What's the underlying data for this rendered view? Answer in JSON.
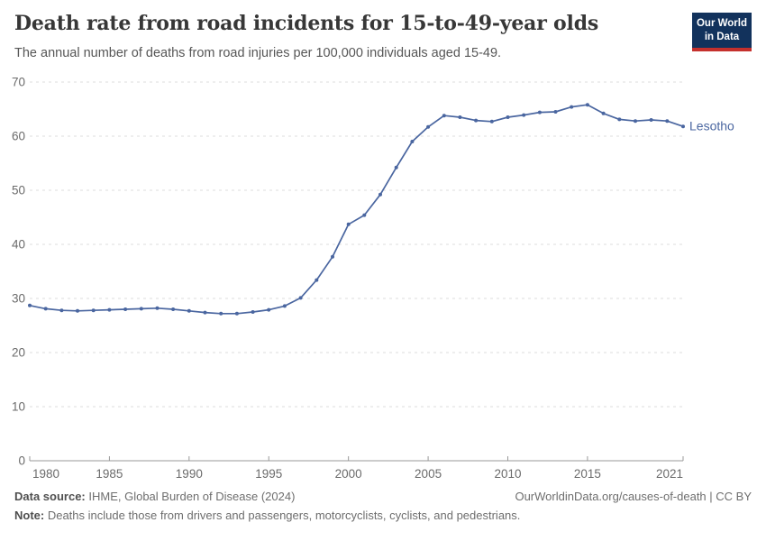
{
  "header": {
    "title": "Death rate from road incidents for 15-to-49-year olds",
    "subtitle": "The annual number of deaths from road injuries per 100,000 individuals aged 15-49."
  },
  "logo": {
    "line1": "Our World",
    "line2": "in Data",
    "bg_color": "#12325c",
    "accent_color": "#c5302d"
  },
  "chart_data": {
    "type": "line",
    "title": "Death rate from road incidents for 15-to-49-year olds",
    "subtitle": "The annual number of deaths from road injuries per 100,000 individuals aged 15-49.",
    "xlabel": "",
    "ylabel": "",
    "xlim": [
      1980,
      2021
    ],
    "ylim": [
      0,
      70
    ],
    "xticks": [
      1980,
      1985,
      1990,
      1995,
      2000,
      2005,
      2010,
      2015,
      2021
    ],
    "yticks": [
      0,
      10,
      20,
      30,
      40,
      50,
      60,
      70
    ],
    "grid": "horizontal-dashed",
    "legend_position": "end-of-line",
    "axis_color": "#999999",
    "grid_color": "#dedede",
    "tick_label_color": "#6b6b6b",
    "series": [
      {
        "name": "Lesotho",
        "color": "#4a66a0",
        "x": [
          1980,
          1981,
          1982,
          1983,
          1984,
          1985,
          1986,
          1987,
          1988,
          1989,
          1990,
          1991,
          1992,
          1993,
          1994,
          1995,
          1996,
          1997,
          1998,
          1999,
          2000,
          2001,
          2002,
          2003,
          2004,
          2005,
          2006,
          2007,
          2008,
          2009,
          2010,
          2011,
          2012,
          2013,
          2014,
          2015,
          2016,
          2017,
          2018,
          2019,
          2020,
          2021
        ],
        "values": [
          28.7,
          28.1,
          27.8,
          27.7,
          27.8,
          27.9,
          28.0,
          28.1,
          28.2,
          28.0,
          27.7,
          27.4,
          27.2,
          27.2,
          27.5,
          27.9,
          28.6,
          30.1,
          33.4,
          37.7,
          43.7,
          45.4,
          49.2,
          54.2,
          59.0,
          61.7,
          63.8,
          63.5,
          62.9,
          62.7,
          63.5,
          63.9,
          64.4,
          64.5,
          65.4,
          65.8,
          64.2,
          63.1,
          62.8,
          63.0,
          62.8,
          61.8
        ]
      }
    ]
  },
  "footer": {
    "source_label": "Data source:",
    "source_text": " IHME, Global Burden of Disease (2024)",
    "link": "OurWorldinData.org/causes-of-death | CC BY",
    "note_label": "Note:",
    "note_text": " Deaths include those from drivers and passengers, motorcyclists, cyclists, and pedestrians."
  }
}
